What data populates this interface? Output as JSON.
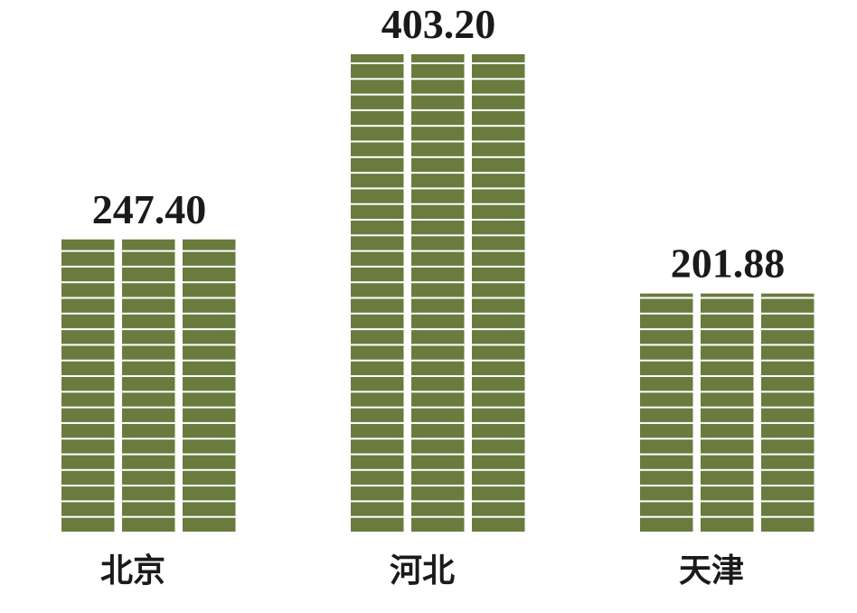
{
  "chart_data": {
    "type": "bar",
    "categories": [
      "北京",
      "河北",
      "天津"
    ],
    "values": [
      247.4,
      403.2,
      201.88
    ],
    "value_labels": [
      "247.40",
      "403.20",
      "201.88"
    ],
    "color": "#6a7b3e"
  }
}
